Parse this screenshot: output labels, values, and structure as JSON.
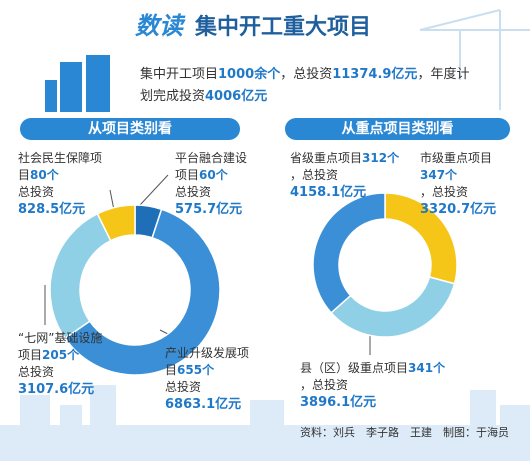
{
  "badge": "数读",
  "title": "集中开工重大项目",
  "summary": [
    "集中开工项目",
    "1000余个",
    "，总投资",
    "11374.9亿元",
    "，年度计划完成投资",
    "4006亿元"
  ],
  "chart_data": [
    {
      "type": "pie",
      "title": "从项目类别看",
      "categories": [
        "平台融合建设项目",
        "产业升级发展项目",
        "“七网”基础设施项目",
        "社会民生保障项目"
      ],
      "count_labels": [
        "60个",
        "655个",
        "205个",
        "80个"
      ],
      "invest_label": "总投资",
      "values": [
        575.7,
        6863.1,
        3107.6,
        828.5
      ],
      "value_labels": [
        "575.7亿元",
        "6863.1亿元",
        "3107.6亿元",
        "828.5亿元"
      ],
      "colors": [
        "#1f6fb8",
        "#3a8fd6",
        "#8fd0e6",
        "#f5c518"
      ]
    },
    {
      "type": "pie",
      "title": "从重点项目类别看",
      "categories": [
        "市级重点项目",
        "县（区）级重点项目",
        "省级重点项目"
      ],
      "count_labels": [
        "347个",
        "341个",
        "312个"
      ],
      "invest_label": "，总投资",
      "values": [
        3320.7,
        3896.1,
        4158.1
      ],
      "value_labels": [
        "3320.7亿元",
        "3896.1亿元",
        "4158.1亿元"
      ],
      "colors": [
        "#f5c518",
        "#8fd0e6",
        "#3a8fd6"
      ]
    }
  ],
  "source": "资料：刘兵　李子路　王建　制图：于海员"
}
